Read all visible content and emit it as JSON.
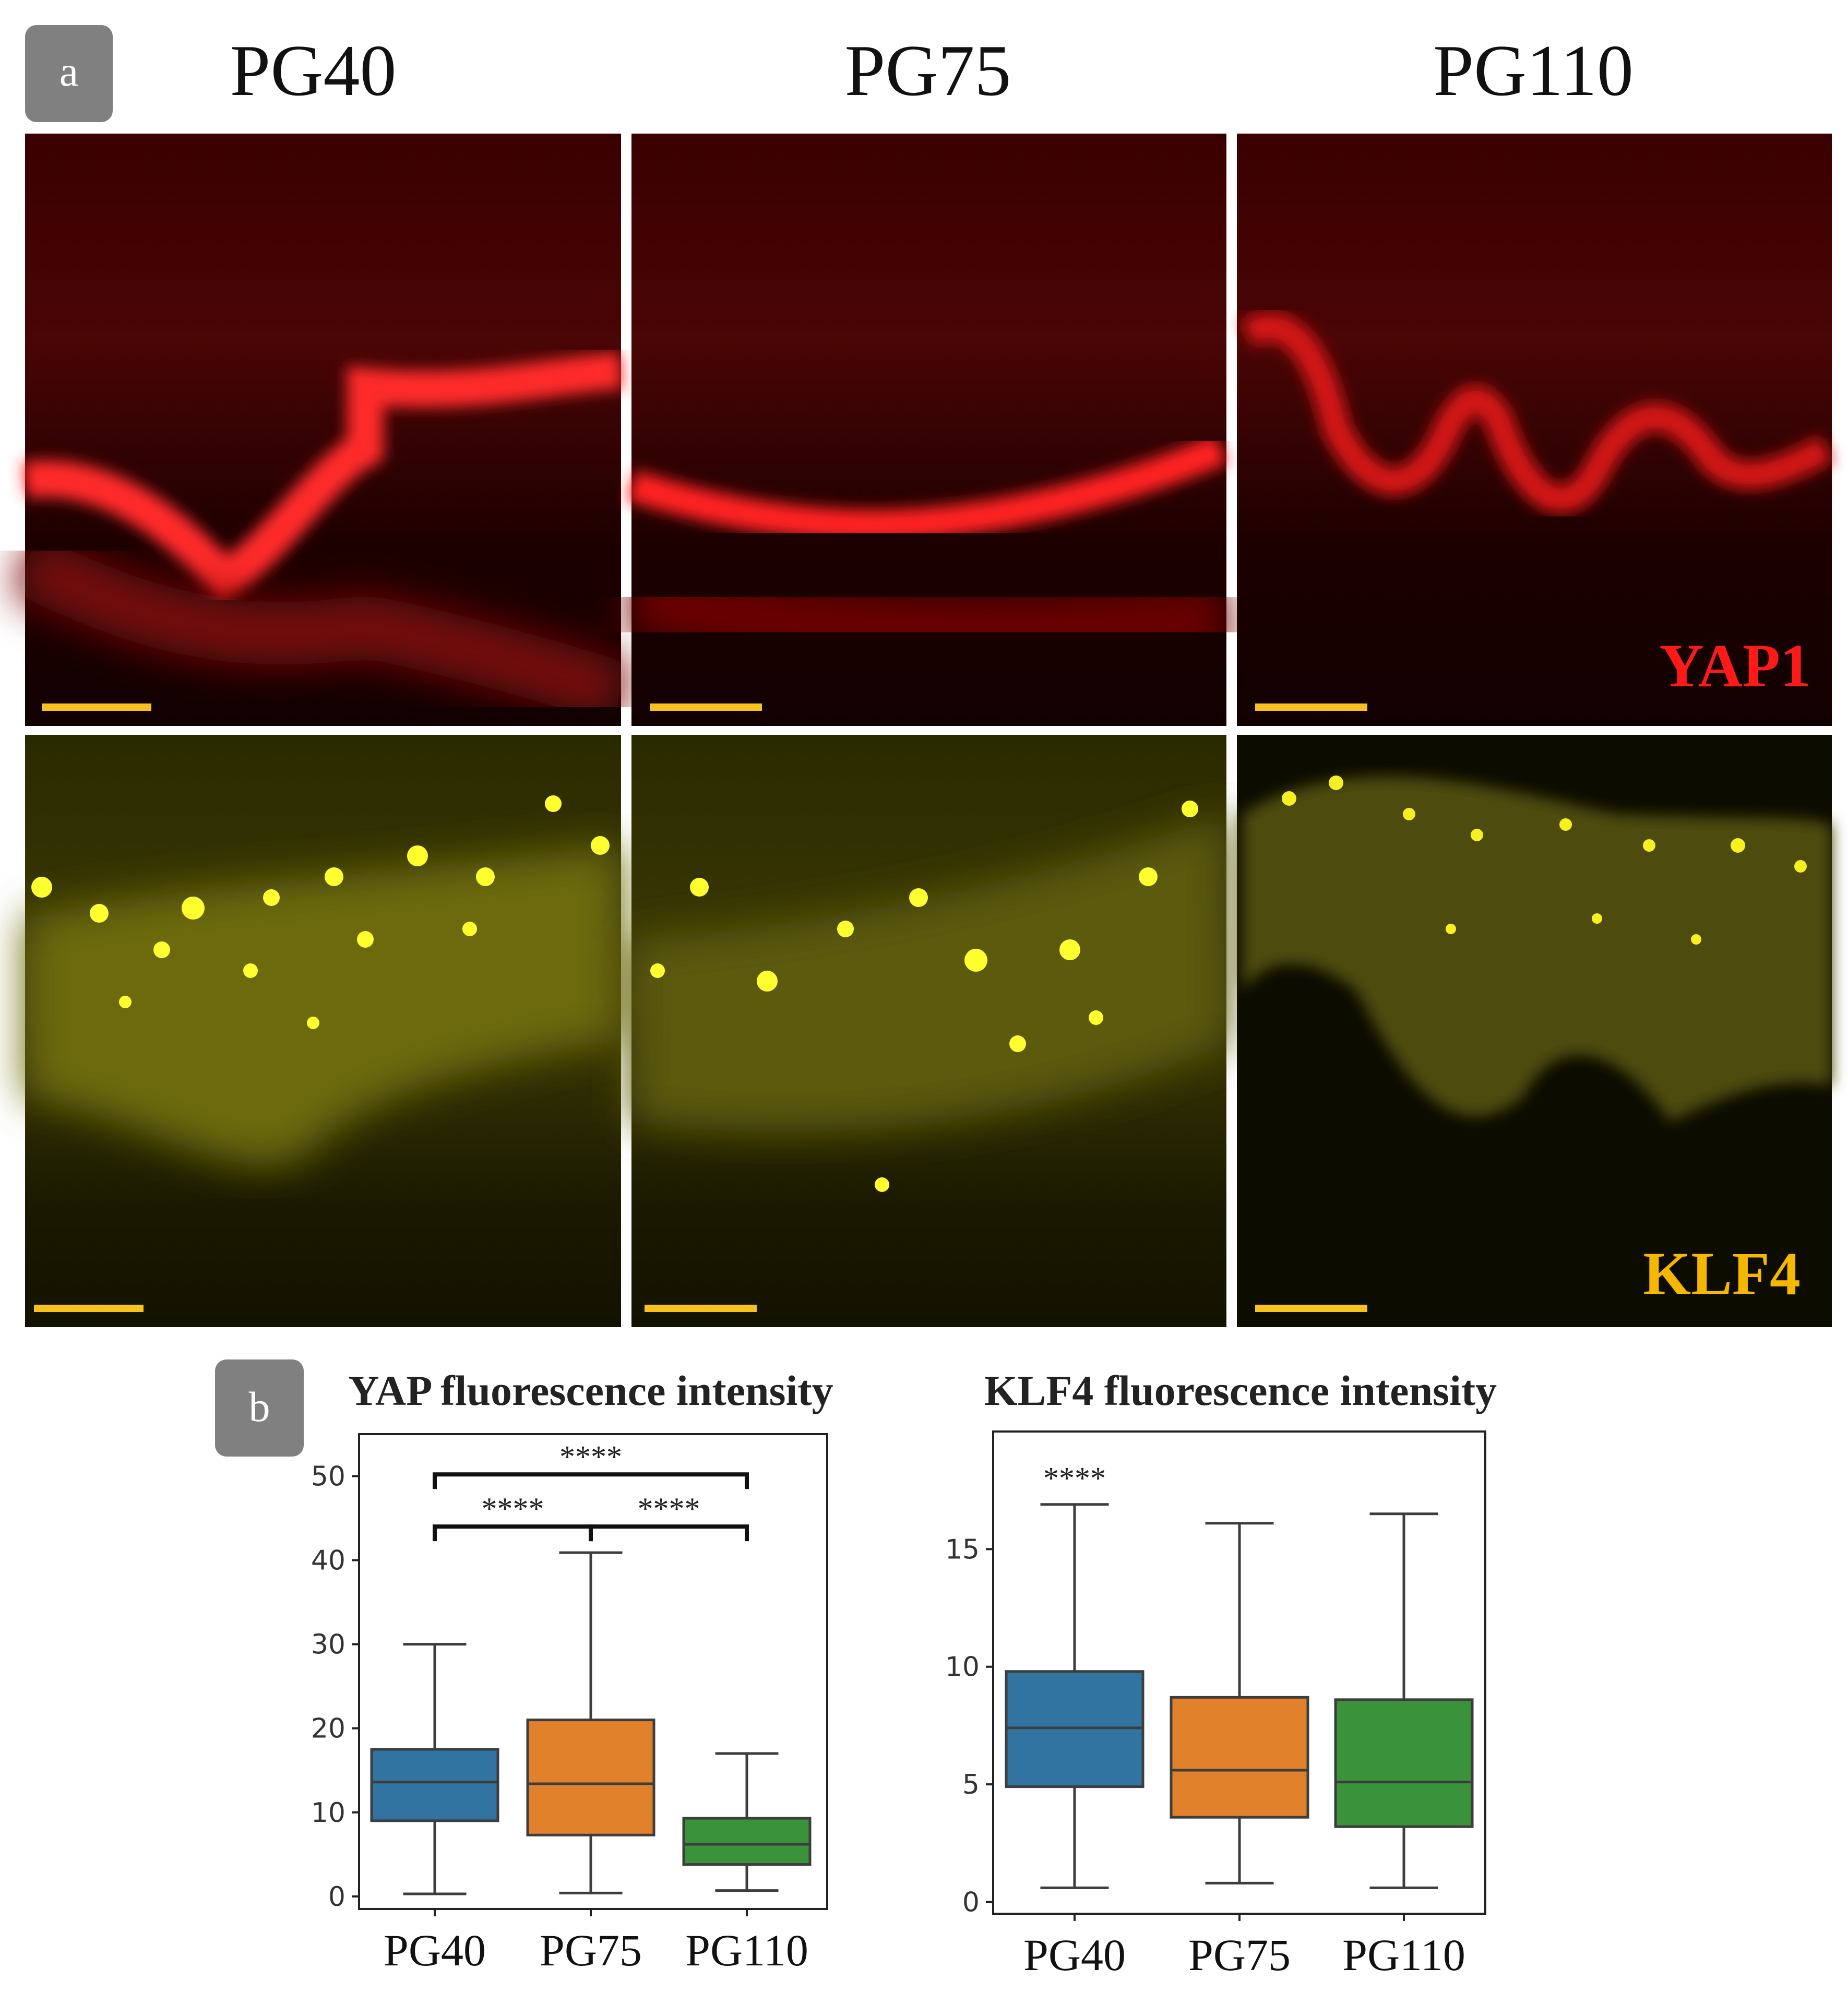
{
  "panel_a": {
    "label": "a",
    "columns": [
      "PG40",
      "PG75",
      "PG110"
    ],
    "rows": [
      {
        "stain": "YAP1",
        "color": "#ff1a1a"
      },
      {
        "stain": "KLF4",
        "color": "#f5b800"
      }
    ]
  },
  "panel_b": {
    "label": "b"
  },
  "chart_data": [
    {
      "type": "box",
      "title": "YAP fluorescence intensity",
      "categories": [
        "PG40",
        "PG75",
        "PG110"
      ],
      "colors": [
        "#3274a1",
        "#e1812c",
        "#3a923a"
      ],
      "boxes": [
        {
          "min": 0.3,
          "q1": 9.0,
          "median": 13.6,
          "q3": 17.5,
          "max": 30.0
        },
        {
          "min": 0.4,
          "q1": 7.3,
          "median": 13.4,
          "q3": 21.0,
          "max": 40.9
        },
        {
          "min": 0.7,
          "q1": 3.8,
          "median": 6.2,
          "q3": 9.3,
          "max": 17.0
        }
      ],
      "ylim": [
        -1.5,
        55
      ],
      "yticks": [
        0,
        10,
        20,
        30,
        40,
        50
      ],
      "significance": [
        {
          "from": 0,
          "to": 1,
          "label": "****",
          "level": 44.0
        },
        {
          "from": 1,
          "to": 2,
          "label": "****",
          "level": 44.0
        },
        {
          "from": 0,
          "to": 2,
          "label": "****",
          "level": 50.2
        }
      ]
    },
    {
      "type": "box",
      "title": "KLF4 fluorescence intensity",
      "categories": [
        "PG40",
        "PG75",
        "PG110"
      ],
      "colors": [
        "#3274a1",
        "#e1812c",
        "#3a923a"
      ],
      "boxes": [
        {
          "min": 0.6,
          "q1": 4.9,
          "median": 7.4,
          "q3": 9.8,
          "max": 16.9
        },
        {
          "min": 0.8,
          "q1": 3.6,
          "median": 5.6,
          "q3": 8.7,
          "max": 16.1
        },
        {
          "min": 0.6,
          "q1": 3.2,
          "median": 5.1,
          "q3": 8.6,
          "max": 16.5
        }
      ],
      "ylim": [
        -0.5,
        20
      ],
      "yticks": [
        0,
        5,
        10,
        15
      ],
      "annotations": [
        {
          "category": 0,
          "label": "****"
        }
      ]
    }
  ]
}
